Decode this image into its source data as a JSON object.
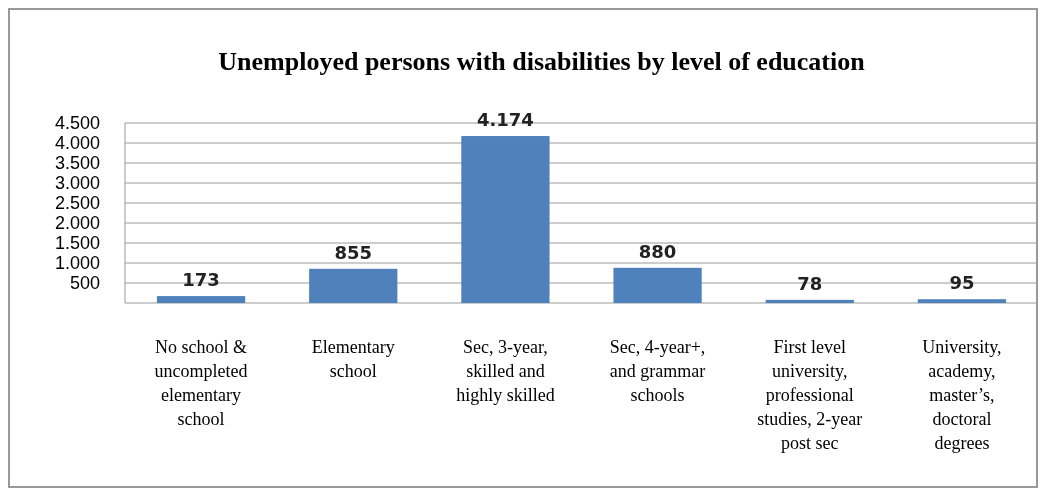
{
  "chart_data": {
    "type": "bar",
    "title": "Unemployed persons with disabilities by level of education",
    "categories": [
      "No school & uncompleted elementary school",
      "Elementary school",
      "Sec, 3-year, skilled and highly skilled",
      "Sec, 4-year+, and grammar schools",
      "First level university, professional studies, 2-year post sec",
      "University, academy, master’s, doctoral degrees"
    ],
    "values": [
      173,
      855,
      4174,
      880,
      78,
      95
    ],
    "color": "#4f81bd",
    "ylim": [
      0,
      4500
    ],
    "yticks": [
      {
        "value": 500,
        "label": "500"
      },
      {
        "value": 1000,
        "label": "1.000"
      },
      {
        "value": 1500,
        "label": "1.500"
      },
      {
        "value": 2000,
        "label": "2.000"
      },
      {
        "value": 2500,
        "label": "2.500"
      },
      {
        "value": 3000,
        "label": "3.000"
      },
      {
        "value": 3500,
        "label": "3.500"
      },
      {
        "value": 4000,
        "label": "4.000"
      },
      {
        "value": 4500,
        "label": "4.500"
      }
    ],
    "grid": "y",
    "value_labels": [
      "173",
      "855",
      "4.174",
      "880",
      "78",
      "95"
    ]
  }
}
